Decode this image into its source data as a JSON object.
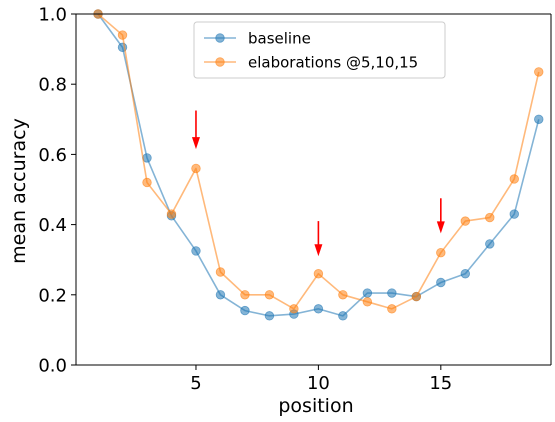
{
  "chart_data": {
    "type": "line",
    "title": "",
    "xlabel": "position",
    "ylabel": "mean accuracy",
    "xlim": [
      0.1,
      19.5
    ],
    "ylim": [
      0.0,
      1.0
    ],
    "xticks": [
      5,
      10,
      15
    ],
    "yticks": [
      0.0,
      0.2,
      0.4,
      0.6,
      0.8,
      1.0
    ],
    "grid": false,
    "legend_position": "top-center",
    "x": [
      1,
      2,
      3,
      4,
      5,
      6,
      7,
      8,
      9,
      10,
      11,
      12,
      13,
      14,
      15,
      16,
      17,
      18,
      19
    ],
    "series": [
      {
        "name": "baseline",
        "color": "#1f77b4",
        "values": [
          1.0,
          0.905,
          0.59,
          0.425,
          0.325,
          0.2,
          0.155,
          0.14,
          0.145,
          0.16,
          0.14,
          0.205,
          0.205,
          0.195,
          0.235,
          0.26,
          0.345,
          0.43,
          0.7
        ]
      },
      {
        "name": "elaborations @5,10,15",
        "color": "#ff7f0e",
        "values": [
          1.0,
          0.94,
          0.52,
          0.43,
          0.56,
          0.265,
          0.2,
          0.2,
          0.16,
          0.26,
          0.2,
          0.18,
          0.16,
          0.195,
          0.32,
          0.41,
          0.42,
          0.53,
          0.835
        ]
      }
    ],
    "annotations": [
      {
        "type": "arrow",
        "color": "#ff0000",
        "x": 5,
        "y_from": 0.725,
        "y_to": 0.615
      },
      {
        "type": "arrow",
        "color": "#ff0000",
        "x": 10,
        "y_from": 0.41,
        "y_to": 0.31
      },
      {
        "type": "arrow",
        "color": "#ff0000",
        "x": 15,
        "y_from": 0.475,
        "y_to": 0.375
      }
    ]
  }
}
